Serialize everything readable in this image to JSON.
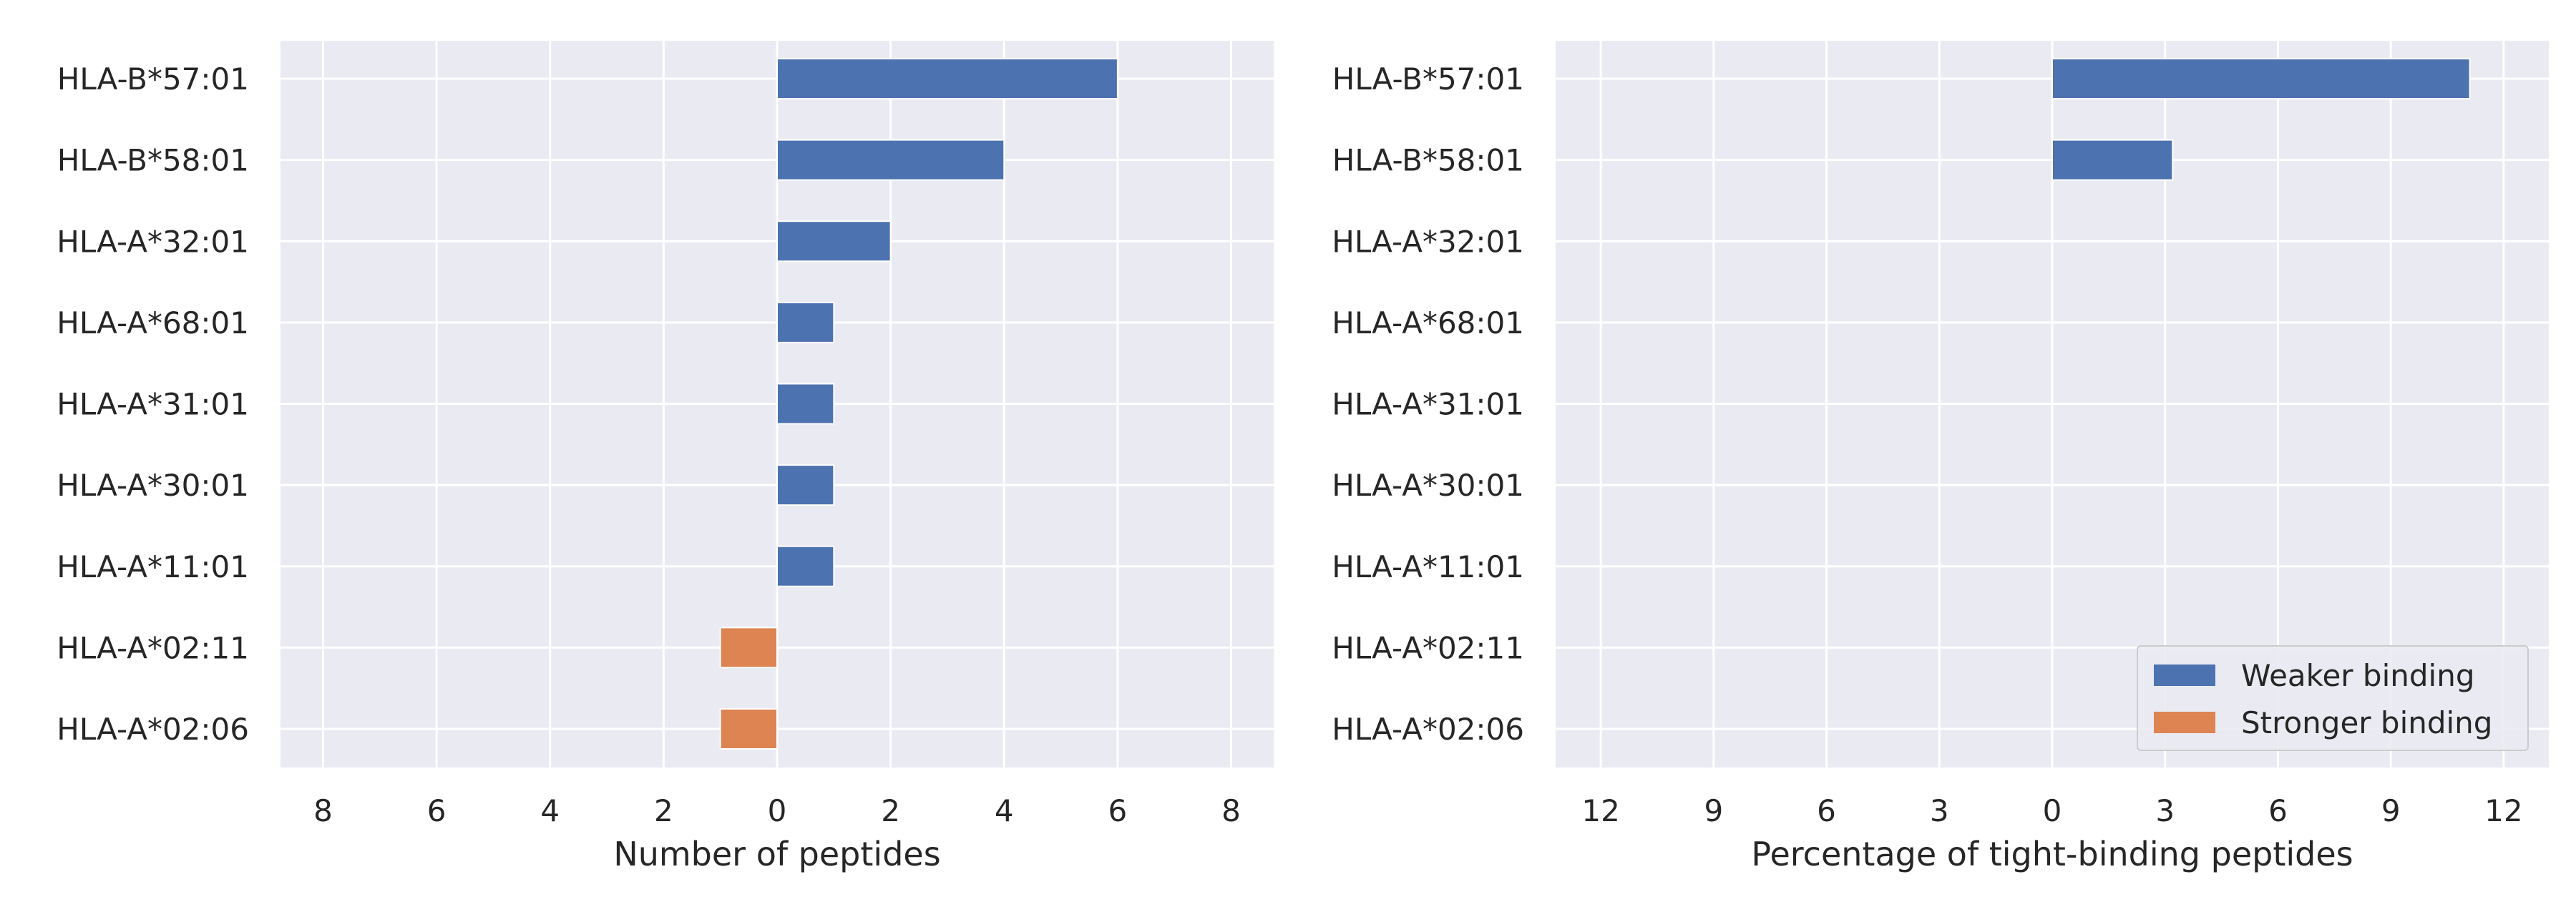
{
  "chart_data": [
    {
      "type": "bar",
      "orientation": "horizontal",
      "categories": [
        "HLA-B*57:01",
        "HLA-B*58:01",
        "HLA-A*32:01",
        "HLA-A*68:01",
        "HLA-A*31:01",
        "HLA-A*30:01",
        "HLA-A*11:01",
        "HLA-A*02:11",
        "HLA-A*02:06"
      ],
      "series": [
        {
          "name": "Weaker binding",
          "color": "#4c72b0",
          "values": [
            6,
            4,
            2,
            1,
            1,
            1,
            1,
            0,
            0
          ]
        },
        {
          "name": "Stronger binding",
          "color": "#dd8452",
          "values": [
            0,
            0,
            0,
            0,
            0,
            0,
            0,
            -1,
            -1
          ]
        }
      ],
      "xticks": [
        -8,
        -6,
        -4,
        -2,
        0,
        2,
        4,
        6,
        8
      ],
      "xtick_labels": [
        "8",
        "6",
        "4",
        "2",
        "0",
        "2",
        "4",
        "6",
        "8"
      ],
      "xlim": [
        -8.75,
        8.75
      ],
      "xlabel": "Number of peptides",
      "grid": true
    },
    {
      "type": "bar",
      "orientation": "horizontal",
      "categories": [
        "HLA-B*57:01",
        "HLA-B*58:01",
        "HLA-A*32:01",
        "HLA-A*68:01",
        "HLA-A*31:01",
        "HLA-A*30:01",
        "HLA-A*11:01",
        "HLA-A*02:11",
        "HLA-A*02:06"
      ],
      "series": [
        {
          "name": "Weaker binding",
          "color": "#4c72b0",
          "values": [
            11.1,
            3.2,
            0,
            0,
            0,
            0,
            0,
            0,
            0
          ]
        },
        {
          "name": "Stronger binding",
          "color": "#dd8452",
          "values": [
            0,
            0,
            0,
            0,
            0,
            0,
            0,
            0,
            0
          ]
        }
      ],
      "xticks": [
        -12,
        -9,
        -6,
        -3,
        0,
        3,
        6,
        9,
        12
      ],
      "xtick_labels": [
        "12",
        "9",
        "6",
        "3",
        "0",
        "3",
        "6",
        "9",
        "12"
      ],
      "xlim": [
        -13.2,
        13.2
      ],
      "xlabel": "Percentage of tight-binding peptides",
      "grid": true,
      "legend": {
        "placement": "lower-right",
        "entries": [
          "Weaker binding",
          "Stronger binding"
        ]
      }
    }
  ],
  "style": {
    "plot_background": "#eaeaf2",
    "grid_color": "#ffffff",
    "text_color": "#262626"
  }
}
